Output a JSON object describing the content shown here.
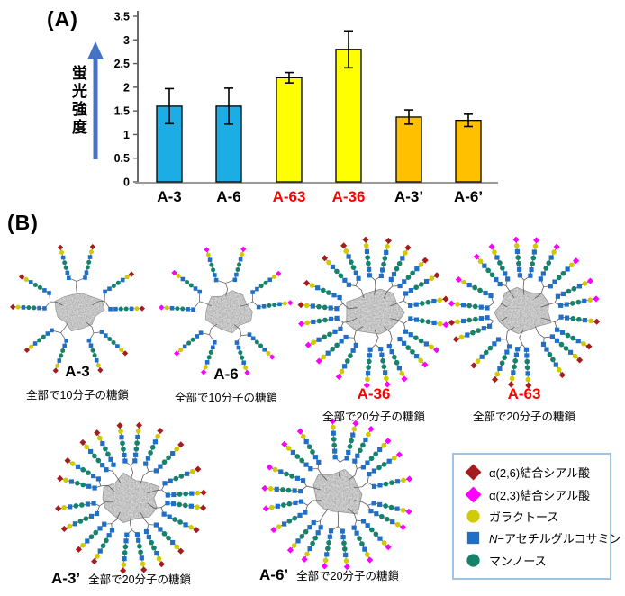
{
  "figure": {
    "panel_a_label": "(A)",
    "panel_b_label": "(B)"
  },
  "chart_data": {
    "type": "bar",
    "title": "",
    "ylabel": "蛍光強度",
    "xlabel": "",
    "categories": [
      "A-3",
      "A-6",
      "A-63",
      "A-36",
      "A-3’",
      "A-6’"
    ],
    "values": [
      1.6,
      1.6,
      2.2,
      2.8,
      1.37,
      1.3
    ],
    "errors": [
      0.37,
      0.38,
      0.11,
      0.39,
      0.15,
      0.13
    ],
    "bar_colors": [
      "#1cade4",
      "#1cade4",
      "#ffff00",
      "#ffff00",
      "#ffc000",
      "#ffc000"
    ],
    "bar_border": "#000000",
    "label_colors": [
      "#000000",
      "#000000",
      "#ff0000",
      "#ff0000",
      "#000000",
      "#000000"
    ],
    "ylim": [
      0,
      3.5
    ],
    "ytick_step": 0.5,
    "grid": false,
    "legend_position": "none",
    "arrow_color": "#4472c4"
  },
  "structures": [
    {
      "name": "A-3",
      "label": "A-3",
      "label_color": "#000000",
      "caption": "全部で10分子の糖鎖",
      "total_chains": 10,
      "tip_scheme": [
        "red"
      ],
      "seed": 11
    },
    {
      "name": "A-6",
      "label": "A-6",
      "label_color": "#000000",
      "caption": "全部で10分子の糖鎖",
      "total_chains": 10,
      "tip_scheme": [
        "magenta"
      ],
      "seed": 23
    },
    {
      "name": "A-36",
      "label": "A-36",
      "label_color": "#ff0000",
      "caption": "全部で20分子の糖鎖",
      "total_chains": 20,
      "tip_scheme": [
        "red",
        "magenta"
      ],
      "seed": 37
    },
    {
      "name": "A-63",
      "label": "A-63",
      "label_color": "#ff0000",
      "caption": "全部で20分子の糖鎖",
      "total_chains": 20,
      "tip_scheme": [
        "magenta",
        "red"
      ],
      "seed": 41
    },
    {
      "name": "A-3p",
      "label": "A-3’",
      "label_color": "#000000",
      "caption": "全部で20分子の糖鎖",
      "total_chains": 20,
      "tip_scheme": [
        "red"
      ],
      "seed": 53
    },
    {
      "name": "A-6p",
      "label": "A-6’",
      "label_color": "#000000",
      "caption": "全部で20分子の糖鎖",
      "total_chains": 20,
      "tip_scheme": [
        "magenta"
      ],
      "seed": 67
    }
  ],
  "glycan_colors": {
    "red": "#a61c1c",
    "magenta": "#ff00ff",
    "galactose": "#d2ca00",
    "glcnac": "#1f6fc8",
    "mannose": "#15836b",
    "linker": "#5a5a5a",
    "protein_fill": "#d9d9d9",
    "protein_edge": "#8f8f8f"
  },
  "legend": {
    "border_color": "#9dc3e6",
    "items": [
      {
        "icon": "red-diamond-icon",
        "shape": "diamond",
        "color": "#a61c1c",
        "label": "α(2,6)結合シアル酸",
        "italic_first": false
      },
      {
        "icon": "magenta-diamond-icon",
        "shape": "diamond",
        "color": "#ff00ff",
        "label": "α(2,3)結合シアル酸",
        "italic_first": false
      },
      {
        "icon": "yellow-circle-icon",
        "shape": "circle",
        "color": "#d2ca00",
        "label": "ガラクトース",
        "italic_first": false
      },
      {
        "icon": "blue-square-icon",
        "shape": "square",
        "color": "#1f6fc8",
        "label": "N−アセチルグルコサミン",
        "italic_first": true
      },
      {
        "icon": "green-circle-icon",
        "shape": "circle",
        "color": "#15836b",
        "label": "マンノース",
        "italic_first": false
      }
    ]
  }
}
